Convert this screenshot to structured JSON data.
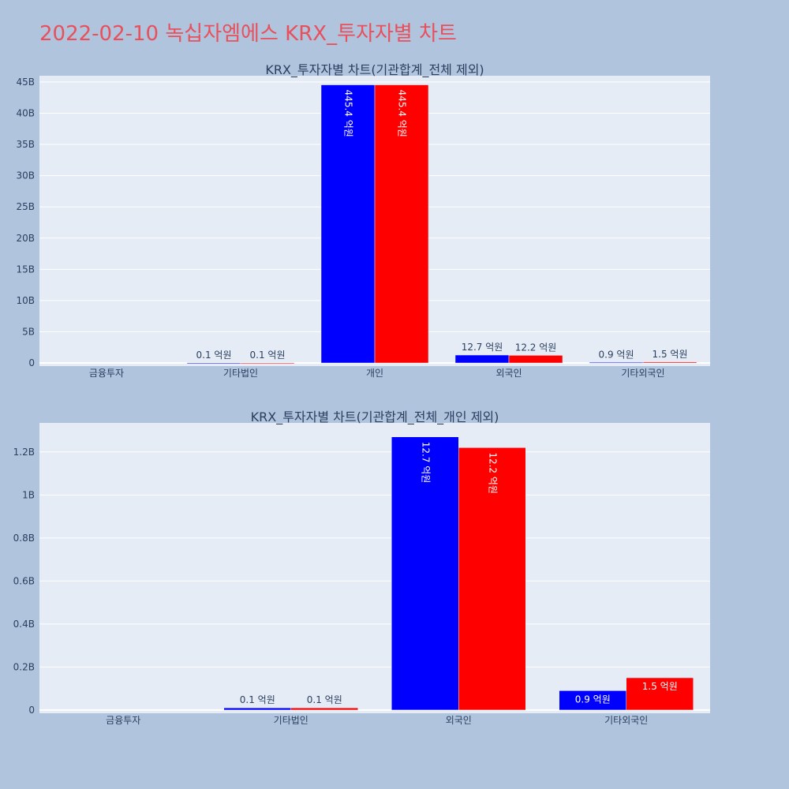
{
  "figure": {
    "title": "2022-02-10 녹십자엠에스 KRX_투자자별 차트",
    "title_color": "#e8505b",
    "background": "#b0c4de",
    "plot_background": "#e5ecf6",
    "series_colors": [
      "#0000ff",
      "#ff0000"
    ]
  },
  "chart_data": [
    {
      "type": "bar",
      "title": "KRX_투자자별 차트(기관합계_전체 제외)",
      "categories": [
        "금융투자",
        "기타법인",
        "개인",
        "외국인",
        "기타외국인"
      ],
      "series": [
        {
          "values": [
            0,
            10000000,
            44540000000,
            1270000000,
            90000000
          ],
          "labels": [
            "",
            "0.1 억원",
            "445.4 억원",
            "12.7 억원",
            "0.9 억원"
          ]
        },
        {
          "values": [
            0,
            10000000,
            44540000000,
            1220000000,
            150000000
          ],
          "labels": [
            "",
            "0.1 억원",
            "445.4 억원",
            "12.2 억원",
            "1.5 억원"
          ]
        }
      ],
      "ylim": [
        -500000000,
        46000000000
      ],
      "yticks": [
        0,
        5000000000,
        10000000000,
        15000000000,
        20000000000,
        25000000000,
        30000000000,
        35000000000,
        40000000000,
        45000000000
      ],
      "ytick_labels": [
        "0",
        "5B",
        "10B",
        "15B",
        "20B",
        "25B",
        "30B",
        "35B",
        "40B",
        "45B"
      ],
      "grid": true,
      "legend": "none"
    },
    {
      "type": "bar",
      "title": "KRX_투자자별 차트(기관합계_전체_개인 제외)",
      "categories": [
        "금융투자",
        "기타법인",
        "외국인",
        "기타외국인"
      ],
      "series": [
        {
          "values": [
            0,
            10000000,
            1270000000,
            90000000
          ],
          "labels": [
            "",
            "0.1 억원",
            "12.7 억원",
            "0.9 억원"
          ]
        },
        {
          "values": [
            0,
            10000000,
            1220000000,
            150000000
          ],
          "labels": [
            "",
            "0.1 억원",
            "12.2 억원",
            "1.5 억원"
          ]
        }
      ],
      "ylim": [
        -15000000,
        1335000000
      ],
      "yticks": [
        0,
        200000000,
        400000000,
        600000000,
        800000000,
        1000000000,
        1200000000
      ],
      "ytick_labels": [
        "0",
        "0.2B",
        "0.4B",
        "0.6B",
        "0.8B",
        "1B",
        "1.2B"
      ],
      "grid": true,
      "legend": "none"
    }
  ]
}
